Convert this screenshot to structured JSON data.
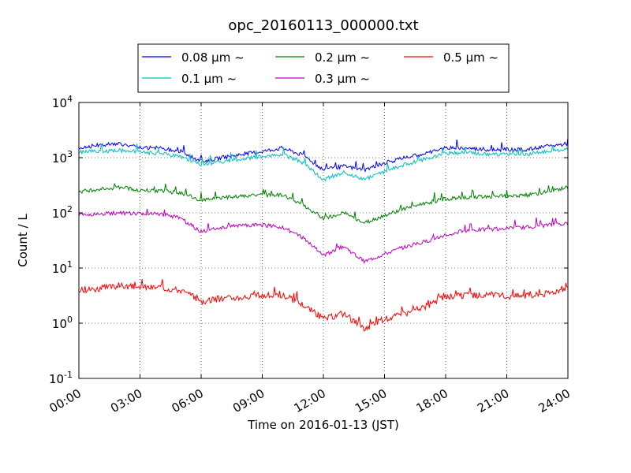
{
  "chart_data": {
    "type": "line",
    "title": "opc_20160113_000000.txt",
    "xlabel": "Time on 2016-01-13 (JST)",
    "ylabel": "Count / L",
    "yscale": "log",
    "ylim": [
      0.1,
      10000
    ],
    "y_ticks": [
      {
        "value": 0.1,
        "base": "10",
        "exp": "-1"
      },
      {
        "value": 1,
        "base": "10",
        "exp": "0"
      },
      {
        "value": 10,
        "base": "10",
        "exp": "1"
      },
      {
        "value": 100,
        "base": "10",
        "exp": "2"
      },
      {
        "value": 1000,
        "base": "10",
        "exp": "3"
      },
      {
        "value": 10000,
        "base": "10",
        "exp": "4"
      }
    ],
    "xlim": [
      "00:00",
      "24:00"
    ],
    "x_ticks": [
      "00:00",
      "03:00",
      "06:00",
      "09:00",
      "12:00",
      "15:00",
      "18:00",
      "21:00",
      "24:00"
    ],
    "grid": true,
    "legend_position": "top-center",
    "x": [
      "00:00",
      "01:00",
      "02:00",
      "03:00",
      "04:00",
      "05:00",
      "06:00",
      "07:00",
      "08:00",
      "09:00",
      "10:00",
      "11:00",
      "12:00",
      "13:00",
      "14:00",
      "15:00",
      "16:00",
      "17:00",
      "18:00",
      "19:00",
      "20:00",
      "21:00",
      "22:00",
      "23:00",
      "24:00"
    ],
    "series": [
      {
        "name": "0.08 μm ~",
        "color": "#0000ff",
        "values": [
          1500,
          1700,
          1800,
          1500,
          1500,
          1300,
          850,
          1000,
          1150,
          1300,
          1500,
          1100,
          600,
          700,
          600,
          800,
          1000,
          1200,
          1500,
          1500,
          1400,
          1400,
          1400,
          1600,
          1800
        ]
      },
      {
        "name": "0.1 μm ~",
        "color": "#00bfbf",
        "values": [
          1250,
          1300,
          1350,
          1250,
          1200,
          1050,
          750,
          850,
          950,
          1050,
          1150,
          800,
          400,
          550,
          400,
          550,
          750,
          950,
          1200,
          1250,
          1150,
          1150,
          1150,
          1300,
          1450
        ]
      },
      {
        "name": "0.2 μm ~",
        "color": "#008000",
        "values": [
          240,
          270,
          290,
          260,
          250,
          230,
          170,
          190,
          200,
          210,
          210,
          140,
          80,
          100,
          65,
          90,
          120,
          150,
          180,
          190,
          200,
          200,
          210,
          240,
          290
        ]
      },
      {
        "name": "0.3 μm ~",
        "color": "#bf00bf",
        "values": [
          90,
          95,
          100,
          95,
          95,
          80,
          45,
          55,
          60,
          60,
          55,
          35,
          17,
          25,
          13,
          18,
          24,
          30,
          40,
          48,
          50,
          52,
          55,
          60,
          65
        ]
      },
      {
        "name": "0.5 μm ~",
        "color": "#ff0000",
        "values": [
          4,
          4.3,
          4.8,
          4.5,
          4.5,
          4,
          2.5,
          2.8,
          3,
          3.2,
          3.2,
          2.2,
          1.2,
          1.5,
          0.8,
          1.2,
          1.5,
          2,
          3,
          3.2,
          3.2,
          3.1,
          3.2,
          3.5,
          4.5
        ]
      }
    ]
  }
}
